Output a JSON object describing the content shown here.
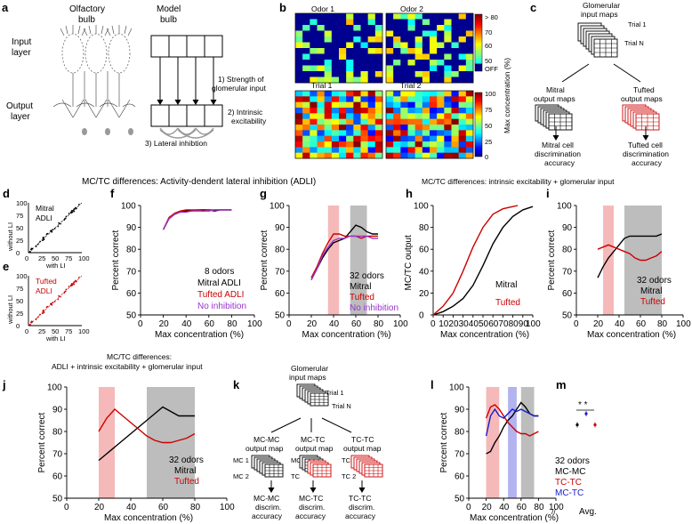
{
  "panels": [
    "a",
    "b",
    "c",
    "d",
    "e",
    "f",
    "g",
    "h",
    "i",
    "j",
    "k",
    "l",
    "m"
  ],
  "a": {
    "olfactory_bulb": "Olfactory\nbulb",
    "model_bulb": "Model\nbulb",
    "input_layer": "Input\nlayer",
    "output_layer": "Output\nlayer",
    "step1": "1) Strength of",
    "step1b": "glomerular input",
    "step2": "2) Intrinsic",
    "step2b": "excitability",
    "step3": "3) Lateral inhibtion"
  },
  "b": {
    "odor1": "Odor 1",
    "odor2": "Odor 2",
    "trial1": "Trial 1",
    "trial2": "Trial 2",
    "colorbar_top_ticks": [
      "> 80",
      "70",
      "60",
      "50",
      "OFF"
    ],
    "colorbar_bottom_ticks": [
      "100",
      "75",
      "50",
      "25",
      "0"
    ],
    "colorbar_label": "Max concentration (%)"
  },
  "c": {
    "glomerular": "Glomerular\ninput maps",
    "trial1": "Trial 1",
    "trialN": "Trial N",
    "mitral_maps": "Mitral\noutput maps",
    "tufted_maps": "Tufted\noutput maps",
    "mitral_acc": "Mitral cell\ndiscrimination\naccuracy",
    "tufted_acc": "Tufted cell\ndiscrimination\naccuracy"
  },
  "headers": {
    "adli": "MC/TC differences: Activity-dendent lateral inhibition (ADLI)",
    "intrinsic": "MC/TC differences: intrinsic excitability + glomerular input",
    "combined": "MC/TC differences:",
    "combined_b": "ADLI + intrinsic excitability + glomerular input"
  },
  "d": {
    "label": "Mitral\nADLI",
    "ylabel": "without LI",
    "xlabel": "with LI",
    "xticks": [
      "0",
      "25",
      "50",
      "75",
      "100"
    ],
    "yticks": [
      "0",
      "25",
      "50",
      "75",
      "100"
    ]
  },
  "e": {
    "label": "Tufted\nADLI",
    "ylabel": "without LI",
    "xlabel": "with LI",
    "xticks": [
      "0",
      "25",
      "50",
      "75",
      "100"
    ],
    "yticks": [
      "0",
      "25",
      "50",
      "75",
      "100"
    ]
  },
  "common": {
    "xlabel": "Max concentration (%)",
    "ylabel_pc": "Percent correct",
    "ylabel_out": "MC/TC output"
  },
  "legends": {
    "f": [
      "8 odors",
      "Mitral ADLI",
      "Tufted ADLI",
      "No inhibition"
    ],
    "g": [
      "32 odors",
      "Mitral",
      "Tufted",
      "No inhibition"
    ],
    "h": [
      "Mitral",
      "Tufted"
    ],
    "i": [
      "32 odors",
      "Mitral",
      "Tufted"
    ],
    "j": [
      "32 odors",
      "Mitral",
      "Tufted"
    ],
    "l": [
      "32 odors",
      "MC-MC",
      "TC-TC",
      "MC-TC"
    ]
  },
  "k": {
    "glomerular": "Glomerular\ninput maps",
    "trial1": "Trial 1",
    "trialN": "Trial N",
    "mcmc": "MC-MC\noutput map",
    "mctc": "MC-TC\noutput map",
    "tctc": "TC-TC\noutput map",
    "mc1": "MC 1",
    "mc2": "MC 2",
    "mc": "MC",
    "tc": "TC",
    "tc1": "TC 1",
    "tc2": "TC 2",
    "acc_mcmc": "MC-MC\ndiscrim.\naccuracy",
    "acc_mctc": "MC-TC\ndiscrim.\naccuracy",
    "acc_tctc": "TC-TC\ndiscrim.\naccuracy"
  },
  "m": {
    "xlabel": "Avg.",
    "stars": "* *"
  },
  "colors": {
    "mitral": "#000000",
    "tufted": "#cc0000",
    "noinhib": "#9933cc",
    "mctc": "#1a1acc",
    "shade_red": "#f6b9b9",
    "shade_gray": "#bdbdbd",
    "shade_blue": "#b3b3f0"
  },
  "chart_data": [
    {
      "panel": "f",
      "type": "line",
      "xlabel": "Max concentration (%)",
      "ylabel": "Percent correct",
      "xlim": [
        0,
        100
      ],
      "ylim": [
        50,
        100
      ],
      "xticks": [
        0,
        20,
        40,
        60,
        80,
        100
      ],
      "yticks": [
        50,
        60,
        70,
        80,
        90,
        100
      ],
      "series": [
        {
          "name": "Mitral ADLI",
          "color": "#000000",
          "x": [
            20,
            25,
            30,
            35,
            40,
            45,
            50,
            55,
            60,
            65,
            70,
            75,
            80
          ],
          "y": [
            89,
            94,
            96,
            97,
            97.5,
            97.5,
            98,
            98,
            98,
            97.5,
            98,
            98,
            98
          ]
        },
        {
          "name": "Tufted ADLI",
          "color": "#cc0000",
          "x": [
            20,
            25,
            30,
            35,
            40,
            45,
            50,
            55,
            60,
            65,
            70,
            75,
            80
          ],
          "y": [
            89,
            94.5,
            96.5,
            97.5,
            98,
            98,
            98,
            97.5,
            98,
            98,
            98,
            98,
            98
          ]
        },
        {
          "name": "No inhibition",
          "color": "#9933cc",
          "x": [
            20,
            25,
            30,
            35,
            40,
            45,
            50,
            55,
            60,
            65,
            70,
            75,
            80
          ],
          "y": [
            89,
            94,
            96,
            97,
            97,
            97.5,
            97.5,
            97.5,
            97.5,
            98,
            98,
            98,
            98
          ]
        }
      ]
    },
    {
      "panel": "g",
      "type": "line",
      "xlabel": "Max concentration (%)",
      "ylabel": "Percent correct",
      "xlim": [
        0,
        100
      ],
      "ylim": [
        50,
        100
      ],
      "xticks": [
        0,
        20,
        40,
        60,
        80,
        100
      ],
      "yticks": [
        50,
        60,
        70,
        80,
        90,
        100
      ],
      "shaded": [
        [
          35,
          45,
          "red"
        ],
        [
          55,
          70,
          "gray"
        ]
      ],
      "series": [
        {
          "name": "Mitral",
          "color": "#000000",
          "x": [
            20,
            25,
            30,
            35,
            40,
            45,
            50,
            55,
            60,
            65,
            70,
            75,
            80
          ],
          "y": [
            66,
            71,
            76,
            80,
            83,
            84,
            85,
            88,
            91,
            90,
            88,
            87,
            87
          ]
        },
        {
          "name": "Tufted",
          "color": "#cc0000",
          "x": [
            20,
            25,
            30,
            35,
            40,
            45,
            50,
            55,
            60,
            65,
            70,
            75,
            80
          ],
          "y": [
            67,
            72,
            78,
            83,
            87,
            87,
            86,
            86,
            86,
            85,
            86,
            86,
            86
          ]
        },
        {
          "name": "No inhibition",
          "color": "#9933cc",
          "x": [
            20,
            25,
            30,
            35,
            40,
            45,
            50,
            55,
            60,
            65,
            70,
            75,
            80
          ],
          "y": [
            66,
            71,
            77,
            81,
            84,
            85,
            85,
            86,
            86,
            86,
            86,
            85,
            85
          ]
        }
      ]
    },
    {
      "panel": "h",
      "type": "line",
      "xlabel": "Max concentration (%)",
      "ylabel": "MC/TC output",
      "xlim": [
        0,
        100
      ],
      "ylim": [
        0,
        100
      ],
      "xticks": [
        0,
        10,
        20,
        30,
        40,
        50,
        60,
        70,
        80,
        90,
        100
      ],
      "yticks": [
        0,
        20,
        40,
        60,
        80,
        100
      ],
      "series": [
        {
          "name": "Mitral",
          "color": "#000000",
          "x": [
            0,
            10,
            20,
            30,
            40,
            50,
            60,
            70,
            80,
            90,
            100
          ],
          "y": [
            0,
            3,
            8,
            15,
            27,
            45,
            65,
            80,
            90,
            96,
            99
          ]
        },
        {
          "name": "Tufted",
          "color": "#cc0000",
          "x": [
            0,
            10,
            20,
            30,
            40,
            50,
            60,
            70,
            80,
            85
          ],
          "y": [
            0,
            8,
            20,
            40,
            62,
            80,
            92,
            97,
            99,
            100
          ]
        }
      ]
    },
    {
      "panel": "i",
      "type": "line",
      "xlabel": "Max concentration (%)",
      "ylabel": "Percent correct",
      "xlim": [
        0,
        100
      ],
      "ylim": [
        50,
        100
      ],
      "xticks": [
        0,
        20,
        40,
        60,
        80,
        100
      ],
      "yticks": [
        50,
        60,
        70,
        80,
        90,
        100
      ],
      "shaded": [
        [
          25,
          35,
          "red"
        ],
        [
          45,
          80,
          "gray"
        ]
      ],
      "series": [
        {
          "name": "Mitral",
          "color": "#000000",
          "x": [
            20,
            25,
            30,
            35,
            40,
            45,
            50,
            55,
            60,
            65,
            70,
            75,
            80
          ],
          "y": [
            67,
            72,
            76,
            79,
            82,
            85,
            86,
            86,
            86,
            86,
            86,
            86,
            87
          ]
        },
        {
          "name": "Tufted",
          "color": "#cc0000",
          "x": [
            20,
            25,
            30,
            35,
            40,
            45,
            50,
            55,
            60,
            65,
            70,
            75,
            80
          ],
          "y": [
            80,
            81,
            82,
            81,
            80,
            79,
            78,
            76,
            75,
            75,
            76,
            77,
            79
          ]
        }
      ]
    },
    {
      "panel": "j",
      "type": "line",
      "xlabel": "Max concentration (%)",
      "ylabel": "Percent correct",
      "xlim": [
        0,
        100
      ],
      "ylim": [
        50,
        100
      ],
      "xticks": [
        0,
        20,
        40,
        60,
        80,
        100
      ],
      "yticks": [
        50,
        60,
        70,
        80,
        90,
        100
      ],
      "shaded": [
        [
          20,
          30,
          "red"
        ],
        [
          50,
          80,
          "gray"
        ]
      ],
      "series": [
        {
          "name": "Mitral",
          "color": "#000000",
          "x": [
            20,
            25,
            30,
            35,
            40,
            45,
            50,
            55,
            60,
            65,
            70,
            75,
            80
          ],
          "y": [
            67,
            70,
            73,
            76,
            79,
            82,
            85,
            88,
            91,
            89,
            87,
            87,
            87
          ]
        },
        {
          "name": "Tufted",
          "color": "#cc0000",
          "x": [
            20,
            25,
            30,
            35,
            40,
            45,
            50,
            55,
            60,
            65,
            70,
            75,
            80
          ],
          "y": [
            80,
            86,
            90,
            87,
            84,
            81,
            78,
            76,
            75,
            75,
            76,
            77,
            79
          ]
        }
      ]
    },
    {
      "panel": "l",
      "type": "line",
      "xlabel": "Max concentration (%)",
      "ylabel": "Percent correct",
      "xlim": [
        0,
        100
      ],
      "ylim": [
        50,
        100
      ],
      "xticks": [
        0,
        20,
        40,
        60,
        80,
        100
      ],
      "yticks": [
        50,
        60,
        70,
        80,
        90,
        100
      ],
      "shaded": [
        [
          20,
          35,
          "red"
        ],
        [
          45,
          55,
          "blue"
        ],
        [
          60,
          75,
          "gray"
        ]
      ],
      "series": [
        {
          "name": "MC-MC",
          "color": "#000000",
          "x": [
            20,
            25,
            30,
            35,
            40,
            45,
            50,
            55,
            60,
            65,
            70,
            75,
            80
          ],
          "y": [
            70,
            71,
            75,
            78,
            82,
            85,
            87,
            90,
            93,
            91,
            88,
            87,
            87
          ]
        },
        {
          "name": "TC-TC",
          "color": "#cc0000",
          "x": [
            20,
            25,
            30,
            35,
            40,
            45,
            50,
            55,
            60,
            65,
            70,
            75,
            80
          ],
          "y": [
            86,
            91,
            92,
            90,
            87,
            84,
            82,
            80,
            79,
            79,
            78,
            79,
            80
          ]
        },
        {
          "name": "MC-TC",
          "color": "#1a1acc",
          "x": [
            20,
            25,
            30,
            35,
            40,
            45,
            50,
            55,
            60,
            65,
            70,
            75,
            80
          ],
          "y": [
            78,
            87,
            90,
            87,
            86,
            88,
            90,
            89,
            90,
            89,
            88,
            87,
            87
          ]
        }
      ]
    },
    {
      "panel": "m",
      "type": "scatter",
      "xlabel": "Avg.",
      "ylim": [
        50,
        100
      ],
      "series": [
        {
          "name": "MC-MC",
          "color": "#000000",
          "y": 83
        },
        {
          "name": "MC-TC",
          "color": "#1a1acc",
          "y": 88
        },
        {
          "name": "TC-TC",
          "color": "#cc0000",
          "y": 83
        }
      ]
    }
  ]
}
